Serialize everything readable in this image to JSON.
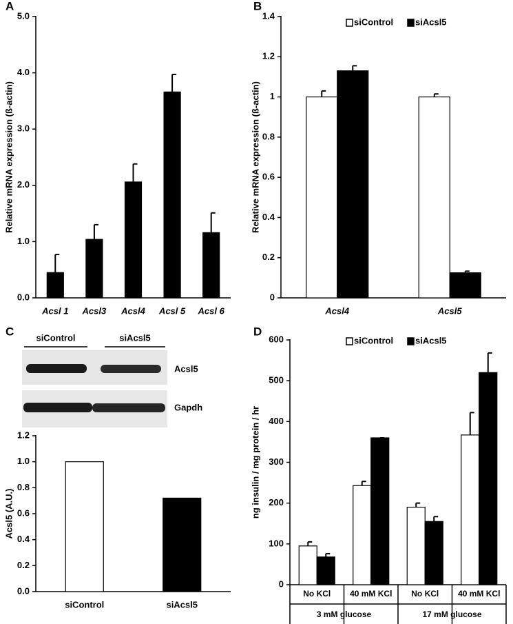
{
  "chart_data": [
    {
      "type": "bar",
      "panel_label": "A",
      "y_label": "Relative mRNA expression (ß-actin)",
      "categories": [
        "Acsl 1",
        "Acsl3",
        "Acsl4",
        "Acsl 5",
        "Acsl 6"
      ],
      "values": [
        0.45,
        1.04,
        2.06,
        3.66,
        1.16
      ],
      "errors": [
        0.32,
        0.26,
        0.32,
        0.31,
        0.35
      ],
      "color": "#000000",
      "ylim": [
        0,
        5
      ],
      "yticks": [
        {
          "value": 0,
          "label": "0.0"
        },
        {
          "value": 1,
          "label": "1.0"
        },
        {
          "value": 2,
          "label": "2.0"
        },
        {
          "value": 3,
          "label": "3.0"
        },
        {
          "value": 4,
          "label": "4.0"
        },
        {
          "value": 5,
          "label": "5.0"
        }
      ]
    },
    {
      "type": "bar",
      "panel_label": "B",
      "y_label": "Relative mRNA expression (ß-actin)",
      "categories": [
        "Acsl4",
        "Acsl5"
      ],
      "series": [
        {
          "name": "siControl",
          "color": "#ffffff",
          "values": [
            1.0,
            1.0
          ],
          "errors": [
            0.03,
            0.015
          ]
        },
        {
          "name": "siAcsl5",
          "color": "#000000",
          "values": [
            1.13,
            0.125
          ],
          "errors": [
            0.025,
            0.008
          ]
        }
      ],
      "ylim": [
        0,
        1.4
      ],
      "yticks": [
        0,
        0.2,
        0.4,
        0.6,
        0.8,
        1,
        1.2,
        1.4
      ]
    },
    {
      "type": "bar",
      "panel_label": "C",
      "y_label": "Acsl5 (A.U.)",
      "blot": {
        "lanes": [
          "siControl",
          "siAcsl5"
        ],
        "bands": [
          "Acsl5",
          "Gapdh"
        ]
      },
      "categories": [
        "siControl",
        "siAcsl5"
      ],
      "values": [
        1.0,
        0.72
      ],
      "colors": [
        "#ffffff",
        "#000000"
      ],
      "ylim": [
        0,
        1.2
      ],
      "yticks": [
        {
          "value": 0,
          "label": "0.0"
        },
        {
          "value": 0.2,
          "label": "0.2"
        },
        {
          "value": 0.4,
          "label": "0.4"
        },
        {
          "value": 0.6,
          "label": "0.6"
        },
        {
          "value": 0.8,
          "label": "0.8"
        },
        {
          "value": 1,
          "label": "1.0"
        },
        {
          "value": 1.2,
          "label": "1.2"
        }
      ]
    },
    {
      "type": "bar",
      "panel_label": "D",
      "y_label": "ng insulin / mg protein / hr",
      "categories": [
        "No KCl",
        "40 mM KCl",
        "No KCl",
        "40 mM KCl"
      ],
      "group_labels": [
        "3 mM glucose",
        "17 mM glucose"
      ],
      "series": [
        {
          "name": "siControl",
          "color": "#ffffff",
          "values": [
            95,
            243,
            190,
            367
          ],
          "errors": [
            10,
            10,
            10,
            55
          ]
        },
        {
          "name": "siAcsl5",
          "color": "#000000",
          "values": [
            68,
            360,
            155,
            520
          ],
          "errors": [
            8,
            0,
            12,
            48
          ]
        }
      ],
      "ylim": [
        0,
        600
      ],
      "yticks": [
        0,
        100,
        200,
        300,
        400,
        500,
        600
      ]
    }
  ]
}
